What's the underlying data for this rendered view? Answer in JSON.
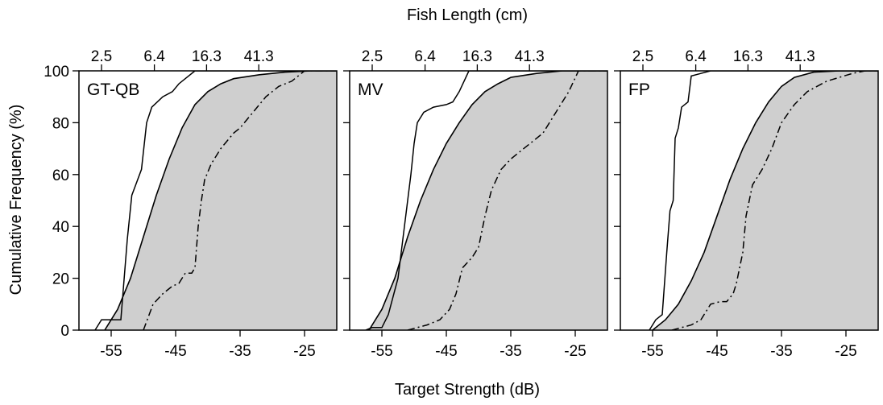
{
  "figure": {
    "top_axis_title": "Fish Length (cm)",
    "bottom_axis_title": "Target Strength (dB)",
    "y_axis_title": "Cumulative Frequency (%)"
  },
  "chart_data": [
    {
      "type": "line",
      "panel_label": "GT-QB",
      "xlim": [
        -60,
        -20
      ],
      "ylim": [
        0,
        100
      ],
      "x_ticks": [
        -55,
        -45,
        -35,
        -25
      ],
      "y_ticks": [
        0,
        20,
        40,
        60,
        80,
        100
      ],
      "top_ticks": [
        {
          "label": "2.5",
          "x": -56.5
        },
        {
          "label": "6.4",
          "x": -48.3
        },
        {
          "label": "16.3",
          "x": -40.2
        },
        {
          "label": "41.3",
          "x": -32.1
        }
      ],
      "grid": false,
      "series": [
        {
          "style": "shaded-area",
          "points": [
            [
              -56,
              0
            ],
            [
              -54,
              8
            ],
            [
              -52,
              20
            ],
            [
              -50,
              36
            ],
            [
              -48,
              52
            ],
            [
              -46,
              66
            ],
            [
              -44,
              78
            ],
            [
              -42,
              87
            ],
            [
              -40,
              92
            ],
            [
              -38,
              95
            ],
            [
              -36,
              97
            ],
            [
              -32,
              98.5
            ],
            [
              -28,
              99.5
            ],
            [
              -24,
              100
            ],
            [
              -20,
              100
            ]
          ]
        },
        {
          "style": "solid",
          "points": [
            [
              -57.5,
              0
            ],
            [
              -56.5,
              4
            ],
            [
              -53.5,
              4
            ],
            [
              -52.5,
              35
            ],
            [
              -51.8,
              52
            ],
            [
              -51.2,
              56
            ],
            [
              -50.3,
              62
            ],
            [
              -49.5,
              80
            ],
            [
              -48.7,
              86
            ],
            [
              -47,
              90
            ],
            [
              -45.5,
              92
            ],
            [
              -44.5,
              95
            ],
            [
              -43,
              98
            ],
            [
              -42,
              100
            ],
            [
              -20,
              100
            ]
          ]
        },
        {
          "style": "dash-dot",
          "points": [
            [
              -50,
              0
            ],
            [
              -48.5,
              10
            ],
            [
              -47,
              14
            ],
            [
              -45.5,
              17
            ],
            [
              -44.5,
              18
            ],
            [
              -43.5,
              22
            ],
            [
              -42.5,
              22
            ],
            [
              -42,
              24
            ],
            [
              -41.5,
              40
            ],
            [
              -41,
              50
            ],
            [
              -40.5,
              58
            ],
            [
              -39.5,
              64
            ],
            [
              -38,
              70
            ],
            [
              -36,
              76
            ],
            [
              -35,
              78
            ],
            [
              -33,
              84
            ],
            [
              -31,
              90
            ],
            [
              -29,
              94
            ],
            [
              -27,
              96
            ],
            [
              -25,
              100
            ],
            [
              -20,
              100
            ]
          ]
        }
      ]
    },
    {
      "type": "line",
      "panel_label": "MV",
      "xlim": [
        -60,
        -20
      ],
      "ylim": [
        0,
        100
      ],
      "x_ticks": [
        -55,
        -45,
        -35,
        -25
      ],
      "y_ticks": [
        0,
        20,
        40,
        60,
        80,
        100
      ],
      "top_ticks": [
        {
          "label": "2.5",
          "x": -56.5
        },
        {
          "label": "6.4",
          "x": -48.3
        },
        {
          "label": "16.3",
          "x": -40.2
        },
        {
          "label": "41.3",
          "x": -32.1
        }
      ],
      "grid": false,
      "series": [
        {
          "style": "shaded-area",
          "points": [
            [
              -57,
              0
            ],
            [
              -55,
              8
            ],
            [
              -53,
              20
            ],
            [
              -51,
              36
            ],
            [
              -49,
              50
            ],
            [
              -47,
              62
            ],
            [
              -45,
              72
            ],
            [
              -43,
              80
            ],
            [
              -41,
              87
            ],
            [
              -39,
              92
            ],
            [
              -37,
              95
            ],
            [
              -35,
              97.5
            ],
            [
              -31,
              99
            ],
            [
              -27,
              100
            ],
            [
              -20,
              100
            ]
          ]
        },
        {
          "style": "solid",
          "points": [
            [
              -57.5,
              0
            ],
            [
              -56.5,
              1
            ],
            [
              -55,
              1
            ],
            [
              -54,
              6
            ],
            [
              -52.5,
              20
            ],
            [
              -51.5,
              40
            ],
            [
              -50.5,
              60
            ],
            [
              -50,
              72
            ],
            [
              -49.5,
              80
            ],
            [
              -48.5,
              84
            ],
            [
              -47,
              86
            ],
            [
              -45,
              87
            ],
            [
              -44,
              88
            ],
            [
              -43,
              92
            ],
            [
              -41.5,
              100
            ],
            [
              -20,
              100
            ]
          ]
        },
        {
          "style": "dash-dot",
          "points": [
            [
              -51,
              0
            ],
            [
              -48,
              2
            ],
            [
              -46,
              4
            ],
            [
              -44.5,
              8
            ],
            [
              -43.5,
              14
            ],
            [
              -42.5,
              24
            ],
            [
              -41,
              28
            ],
            [
              -40,
              32
            ],
            [
              -39,
              44
            ],
            [
              -38,
              54
            ],
            [
              -36.5,
              62
            ],
            [
              -35,
              66
            ],
            [
              -33,
              70
            ],
            [
              -30,
              76
            ],
            [
              -28,
              84
            ],
            [
              -26,
              92
            ],
            [
              -24.5,
              100
            ],
            [
              -20,
              100
            ]
          ]
        }
      ]
    },
    {
      "type": "line",
      "panel_label": "FP",
      "xlim": [
        -60,
        -20
      ],
      "ylim": [
        0,
        100
      ],
      "x_ticks": [
        -55,
        -45,
        -35,
        -25
      ],
      "y_ticks": [
        0,
        20,
        40,
        60,
        80,
        100
      ],
      "top_ticks": [
        {
          "label": "2.5",
          "x": -56.5
        },
        {
          "label": "6.4",
          "x": -48.3
        },
        {
          "label": "16.3",
          "x": -40.2
        },
        {
          "label": "41.3",
          "x": -32.1
        }
      ],
      "grid": false,
      "series": [
        {
          "style": "shaded-area",
          "points": [
            [
              -55,
              0
            ],
            [
              -53,
              4
            ],
            [
              -51,
              10
            ],
            [
              -49,
              19
            ],
            [
              -47,
              30
            ],
            [
              -45,
              44
            ],
            [
              -43,
              58
            ],
            [
              -41,
              70
            ],
            [
              -39,
              80
            ],
            [
              -37,
              88
            ],
            [
              -35,
              94
            ],
            [
              -33,
              97.5
            ],
            [
              -30,
              99.5
            ],
            [
              -26,
              100
            ],
            [
              -20,
              100
            ]
          ]
        },
        {
          "style": "solid",
          "points": [
            [
              -55.5,
              0
            ],
            [
              -54.5,
              4
            ],
            [
              -53.5,
              6
            ],
            [
              -52.8,
              30
            ],
            [
              -52.3,
              46
            ],
            [
              -51.8,
              50
            ],
            [
              -51.5,
              74
            ],
            [
              -51,
              78
            ],
            [
              -50.5,
              86
            ],
            [
              -49.5,
              88
            ],
            [
              -49,
              98
            ],
            [
              -47.5,
              99
            ],
            [
              -46,
              100
            ],
            [
              -20,
              100
            ]
          ]
        },
        {
          "style": "dash-dot",
          "points": [
            [
              -52,
              0
            ],
            [
              -49,
              2
            ],
            [
              -47.5,
              4
            ],
            [
              -46,
              10
            ],
            [
              -44.5,
              11
            ],
            [
              -43.5,
              11
            ],
            [
              -42.5,
              14
            ],
            [
              -42,
              18
            ],
            [
              -41.5,
              24
            ],
            [
              -41,
              30
            ],
            [
              -40.5,
              44
            ],
            [
              -39.5,
              56
            ],
            [
              -38,
              62
            ],
            [
              -36.5,
              70
            ],
            [
              -35,
              80
            ],
            [
              -33,
              87
            ],
            [
              -31,
              92
            ],
            [
              -28,
              96
            ],
            [
              -24,
              99
            ],
            [
              -22,
              100
            ],
            [
              -20,
              100
            ]
          ]
        }
      ]
    }
  ]
}
